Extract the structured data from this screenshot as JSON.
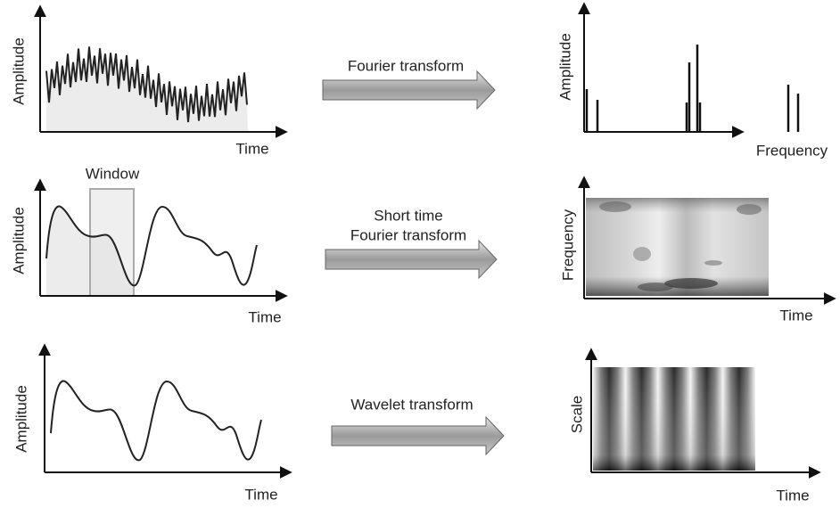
{
  "rows": [
    {
      "left": {
        "y_label": "Amplitude",
        "x_label": "Time"
      },
      "transform": [
        "Fourier transform"
      ],
      "right": {
        "y_label": "Amplitude",
        "x_label": "Frequency"
      }
    },
    {
      "left": {
        "y_label": "Amplitude",
        "x_label": "Time",
        "window": "Window"
      },
      "transform": [
        "Short time",
        "Fourier transform"
      ],
      "right": {
        "y_label": "Frequency",
        "x_label": "Time"
      }
    },
    {
      "left": {
        "y_label": "Amplitude",
        "x_label": "Time"
      },
      "transform": [
        "Wavelet transform"
      ],
      "right": {
        "y_label": "Scale",
        "x_label": "Time"
      }
    }
  ]
}
